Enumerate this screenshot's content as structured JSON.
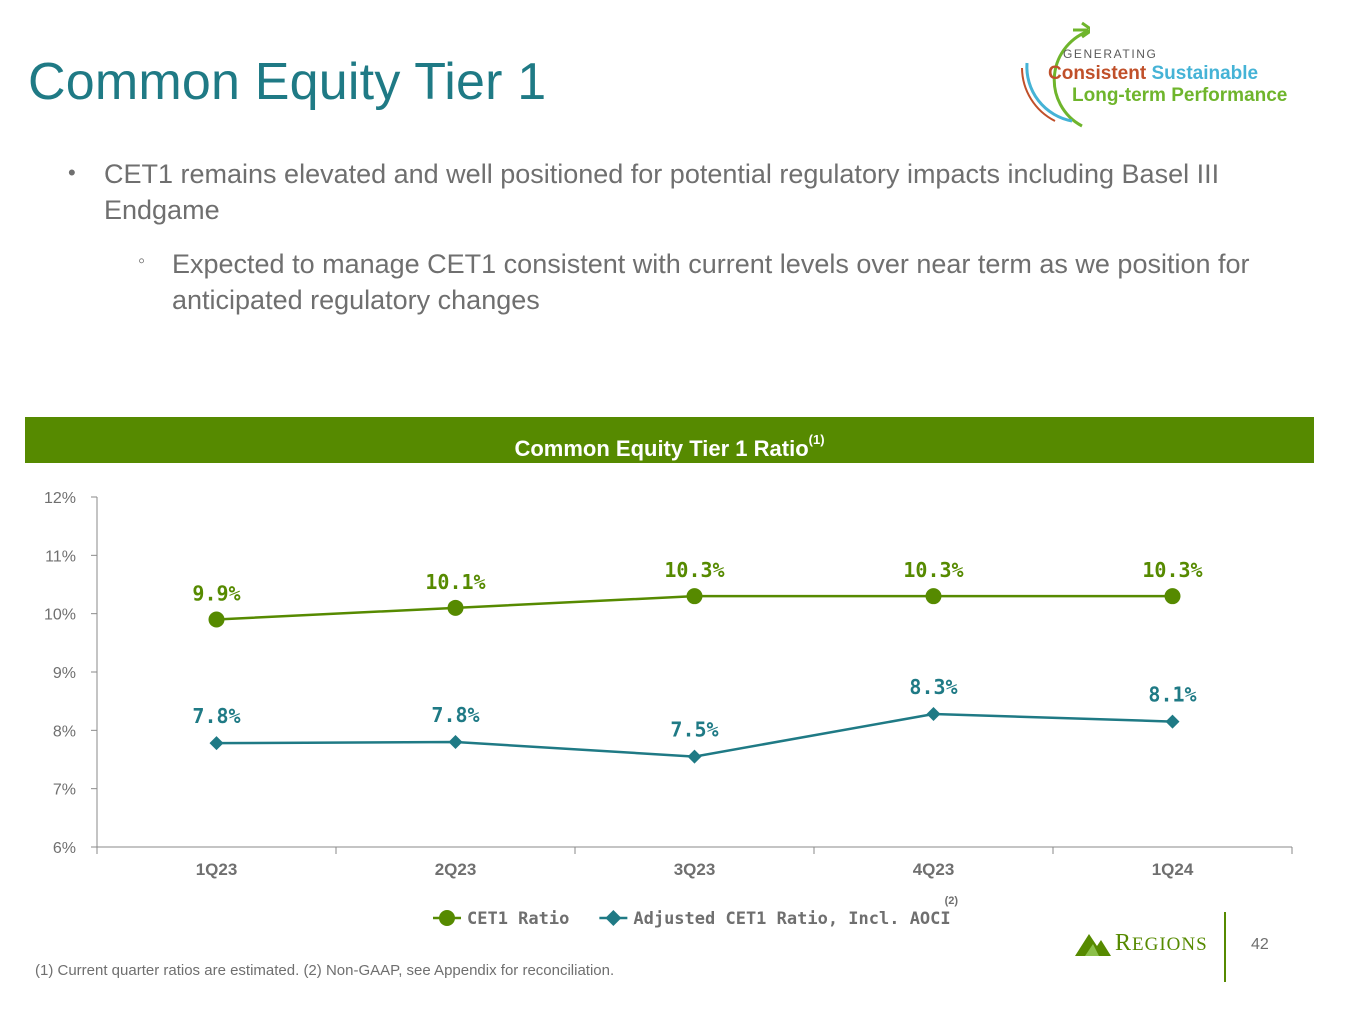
{
  "slide": {
    "title": "Common Equity Tier 1",
    "page_number": "42",
    "footnote": "(1) Current quarter ratios are estimated. (2) Non-GAAP, see Appendix for reconciliation."
  },
  "logo": {
    "generating": "GENERATING",
    "consistent": "Consistent",
    "sustainable": "Sustainable",
    "long_term": "Long-term Performance",
    "colors": {
      "consistent": "#c0502a",
      "sustainable": "#45b3d6",
      "long_term": "#6fb52c"
    }
  },
  "brand": {
    "name": "Regions",
    "color": "#568a00"
  },
  "bullets": {
    "level1": "CET1 remains elevated and well positioned for potential regulatory impacts including Basel III Endgame",
    "level2": "Expected to manage CET1 consistent with current levels over near term as we position for anticipated regulatory changes"
  },
  "chart_header": {
    "title": "Common Equity Tier 1 Ratio",
    "superscript": "(1)",
    "color": "#568a00"
  },
  "chart_data": {
    "type": "line",
    "title": "Common Equity Tier 1 Ratio",
    "categories": [
      "1Q23",
      "2Q23",
      "3Q23",
      "4Q23",
      "1Q24"
    ],
    "ylim": [
      6,
      12
    ],
    "y_ticks": [
      "6%",
      "7%",
      "8%",
      "9%",
      "10%",
      "11%",
      "12%"
    ],
    "xlabel": "",
    "ylabel": "",
    "grid": false,
    "legend_position": "bottom-center",
    "series": [
      {
        "name": "CET1 Ratio",
        "marker": "circle",
        "color": "#568a00",
        "values": [
          9.9,
          10.1,
          10.3,
          10.3,
          10.3
        ],
        "labels": [
          "9.9%",
          "10.1%",
          "10.3%",
          "10.3%",
          "10.3%"
        ]
      },
      {
        "name": "Adjusted CET1 Ratio, Incl. AOCI",
        "name_superscript": "(2)",
        "marker": "diamond",
        "color": "#1f7a85",
        "values": [
          7.78,
          7.8,
          7.55,
          8.28,
          8.15
        ],
        "labels": [
          "7.8%",
          "7.8%",
          "7.5%",
          "8.3%",
          "8.1%"
        ]
      }
    ]
  }
}
